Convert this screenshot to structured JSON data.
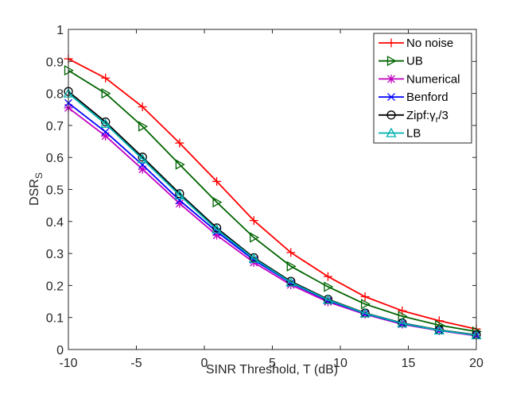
{
  "chart_data": {
    "type": "line",
    "title": "",
    "xlabel": "SINR Threshold, T (dB)",
    "ylabel": {
      "main": "DSR",
      "sub": "S"
    },
    "xlim": [
      -10,
      20
    ],
    "ylim": [
      0,
      1
    ],
    "xticks": [
      "-10",
      "-5",
      "0",
      "5",
      "10",
      "15",
      "20"
    ],
    "yticks": [
      "0",
      "0.1",
      "0.2",
      "0.3",
      "0.4",
      "0.5",
      "0.6",
      "0.7",
      "0.8",
      "0.9",
      "1"
    ],
    "grid": false,
    "legend_position": "top-right",
    "x": [
      -10,
      -7.27,
      -4.55,
      -1.82,
      0.91,
      3.64,
      6.36,
      9.09,
      11.82,
      14.55,
      17.27,
      20
    ],
    "series": [
      {
        "name": "No noise",
        "color": "#ff0000",
        "marker": "plus",
        "values": [
          0.908,
          0.848,
          0.758,
          0.645,
          0.525,
          0.403,
          0.303,
          0.228,
          0.165,
          0.121,
          0.09,
          0.064
        ]
      },
      {
        "name": "UB",
        "color": "#006400",
        "marker": "triangle-right",
        "values": [
          0.872,
          0.8,
          0.697,
          0.578,
          0.46,
          0.35,
          0.26,
          0.196,
          0.142,
          0.104,
          0.076,
          0.056
        ]
      },
      {
        "name": "Numerical",
        "color": "#c000c0",
        "marker": "asterisk",
        "values": [
          0.755,
          0.667,
          0.563,
          0.456,
          0.357,
          0.272,
          0.202,
          0.149,
          0.11,
          0.079,
          0.059,
          0.043
        ]
      },
      {
        "name": "Benford",
        "color": "#0000ff",
        "marker": "x",
        "values": [
          0.77,
          0.68,
          0.577,
          0.466,
          0.368,
          0.28,
          0.208,
          0.153,
          0.112,
          0.081,
          0.06,
          0.045
        ]
      },
      {
        "name": "Zipf:γ_r/3",
        "label_parts": {
          "main": "Zipf:γ",
          "sub": "r",
          "tail": "/3"
        },
        "color": "#000000",
        "marker": "circle",
        "values": [
          0.806,
          0.711,
          0.601,
          0.487,
          0.38,
          0.287,
          0.213,
          0.157,
          0.114,
          0.083,
          0.061,
          0.046
        ]
      },
      {
        "name": "LB",
        "color": "#00b0b0",
        "marker": "triangle-up",
        "values": [
          0.8,
          0.705,
          0.595,
          0.482,
          0.375,
          0.284,
          0.21,
          0.155,
          0.113,
          0.082,
          0.06,
          0.045
        ]
      }
    ]
  }
}
